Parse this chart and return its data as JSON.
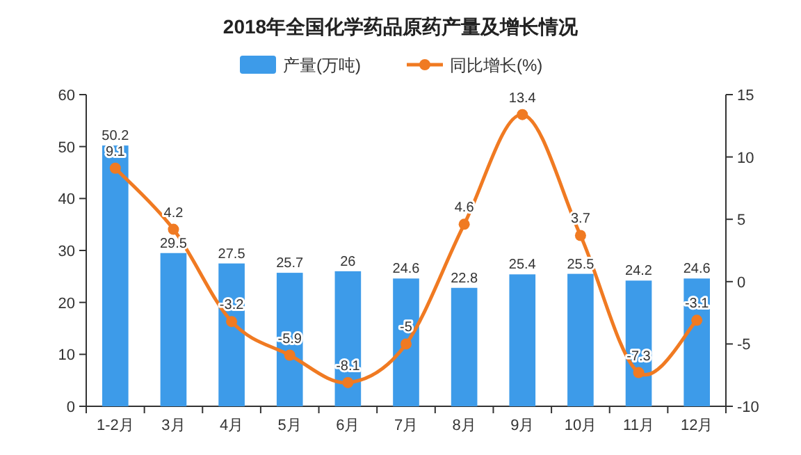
{
  "chart_data": {
    "type": "bar",
    "title": "2018年全国化学药品原药产量及增长情况",
    "categories": [
      "1-2月",
      "3月",
      "4月",
      "5月",
      "6月",
      "7月",
      "8月",
      "9月",
      "10月",
      "11月",
      "12月"
    ],
    "series": [
      {
        "name": "产量(万吨)",
        "color": "#3d9be9",
        "values": [
          50.2,
          29.5,
          27.5,
          25.7,
          26,
          24.6,
          22.8,
          25.4,
          25.5,
          24.2,
          24.6
        ]
      },
      {
        "name": "同比增长(%)",
        "type": "line",
        "axis": "y2",
        "color": "#f07a22",
        "marker": "circle",
        "values": [
          9.1,
          4.2,
          -3.2,
          -5.9,
          -8.1,
          -5,
          4.6,
          13.4,
          3.7,
          -7.3,
          -3.1
        ]
      }
    ],
    "ylim": [
      0,
      60
    ],
    "yticks": [
      0,
      10,
      20,
      30,
      40,
      50,
      60
    ],
    "y2lim": [
      -10,
      15
    ],
    "y2ticks": [
      -10,
      -5,
      0,
      5,
      10,
      15
    ],
    "data_labels": true,
    "legend": "top",
    "grid": false
  }
}
